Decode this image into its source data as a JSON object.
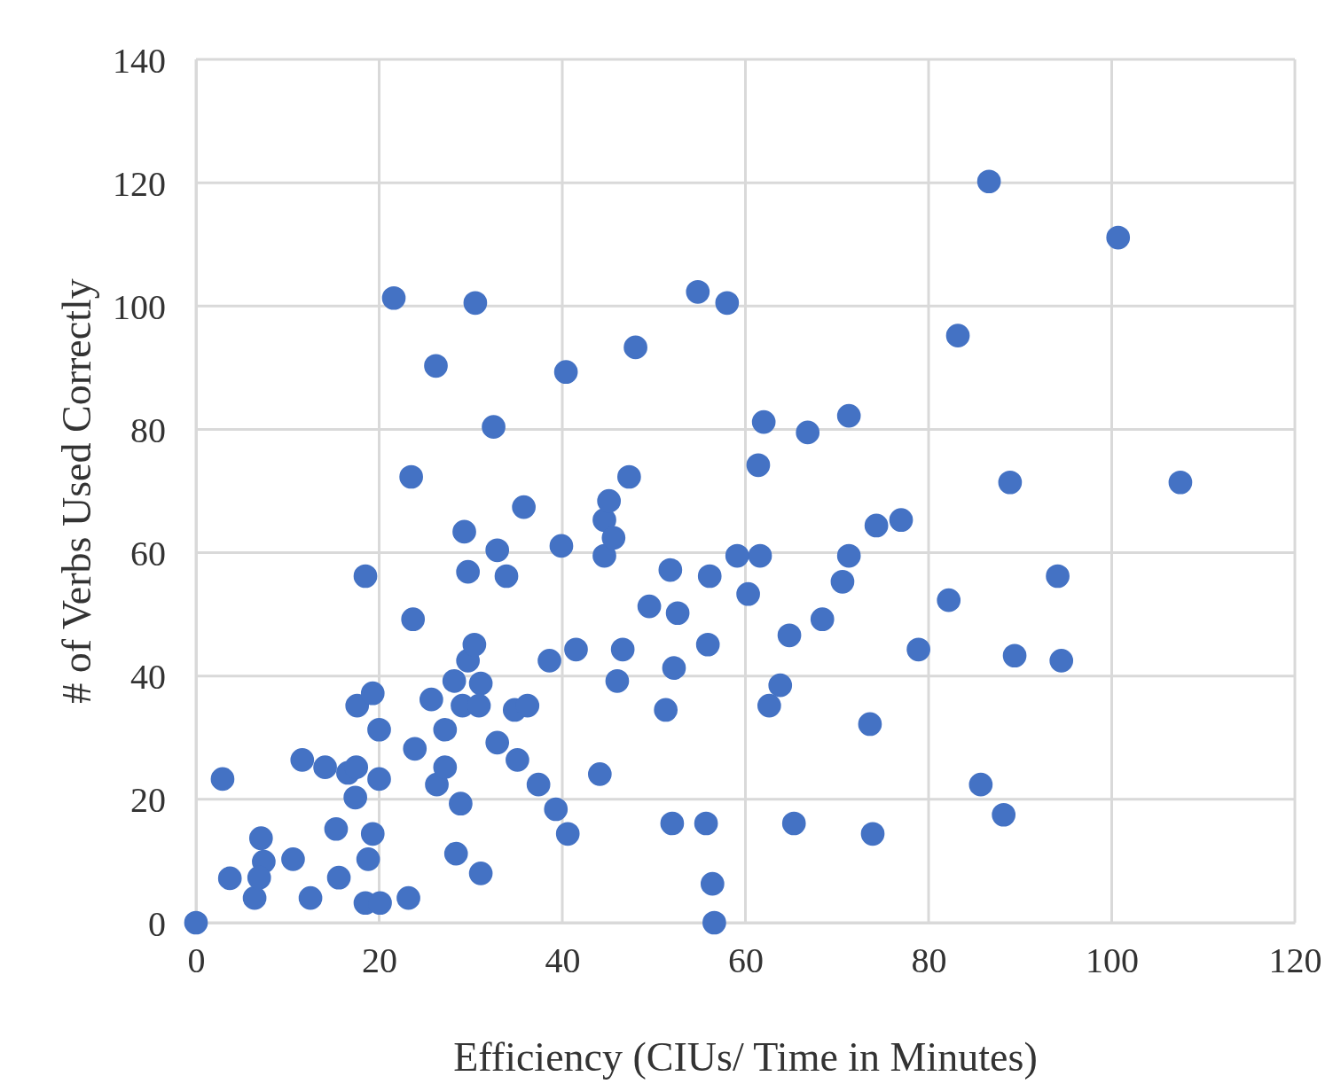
{
  "chart_data": {
    "type": "scatter",
    "xlabel": "Efficiency (CIUs/ Time in Minutes)",
    "ylabel": "# of Verbs Used Correctly",
    "xlim": [
      0,
      120
    ],
    "xticks": [
      0,
      20,
      40,
      60,
      80,
      100,
      120
    ],
    "ylim": [
      0,
      140
    ],
    "yticks": [
      0,
      20,
      40,
      60,
      80,
      100,
      120,
      140
    ],
    "grid": true,
    "marker": "circle",
    "series": [
      {
        "color": "#4472c4",
        "x": [
          0,
          2.9,
          3.7,
          6.4,
          7.1,
          7.4,
          6.9,
          10.6,
          11.6,
          12.5,
          14.1,
          15.3,
          15.6,
          16.6,
          17.5,
          17.4,
          17.6,
          18.5,
          18.8,
          18.5,
          19.3,
          19.3,
          20.0,
          20.0,
          20.1,
          21.6,
          23.2,
          23.5,
          23.7,
          23.9,
          25.7,
          26.2,
          26.3,
          27.2,
          27.2,
          28.4,
          28.9,
          28.2,
          29.3,
          29.7,
          29.7,
          29.1,
          30.4,
          30.5,
          31.1,
          30.9,
          31.1,
          32.5,
          32.9,
          33.9,
          32.9,
          34.8,
          35.1,
          35.8,
          36.2,
          37.4,
          38.6,
          39.3,
          39.9,
          40.4,
          40.6,
          41.5,
          44.1,
          44.6,
          44.6,
          45.1,
          45.6,
          46.0,
          46.6,
          47.3,
          48.0,
          49.5,
          51.3,
          51.8,
          52.0,
          52.2,
          52.6,
          54.8,
          55.7,
          55.9,
          56.1,
          56.4,
          56.6,
          58.0,
          59.1,
          60.3,
          61.4,
          61.6,
          62.0,
          62.6,
          63.8,
          64.8,
          65.3,
          66.8,
          68.4,
          70.6,
          71.3,
          71.3,
          73.6,
          73.9,
          74.3,
          77.0,
          78.9,
          82.2,
          83.2,
          85.7,
          86.6,
          88.2,
          88.9,
          89.4,
          94.1,
          94.5,
          100.7,
          107.5
        ],
        "values": [
          0,
          23.3,
          7.2,
          4.0,
          13.7,
          9.9,
          7.3,
          10.3,
          26.4,
          4.0,
          25.2,
          15.2,
          7.3,
          24.3,
          25.2,
          20.3,
          35.2,
          56.2,
          10.3,
          3.2,
          37.2,
          14.4,
          31.3,
          23.3,
          3.2,
          101.3,
          4.0,
          72.3,
          49.2,
          28.2,
          36.2,
          90.3,
          22.4,
          25.2,
          31.3,
          11.2,
          19.3,
          39.2,
          63.4,
          56.9,
          42.5,
          35.2,
          45.1,
          100.5,
          38.8,
          35.2,
          8.0,
          80.4,
          60.4,
          56.2,
          29.2,
          34.5,
          26.4,
          67.4,
          35.2,
          22.4,
          42.5,
          18.4,
          61.1,
          89.3,
          14.4,
          44.3,
          24.1,
          65.3,
          59.5,
          68.4,
          62.4,
          39.2,
          44.3,
          72.3,
          93.3,
          51.3,
          34.5,
          57.2,
          16.1,
          41.3,
          50.2,
          102.3,
          16.1,
          45.1,
          56.2,
          6.3,
          0,
          100.5,
          59.5,
          53.3,
          74.2,
          59.5,
          81.2,
          35.2,
          38.5,
          46.6,
          16.1,
          79.5,
          49.2,
          55.3,
          82.2,
          59.5,
          32.2,
          14.4,
          64.4,
          65.3,
          44.3,
          52.3,
          95.2,
          22.4,
          120.2,
          17.5,
          71.4,
          43.3,
          56.2,
          42.5,
          111.1,
          71.4
        ]
      }
    ]
  }
}
